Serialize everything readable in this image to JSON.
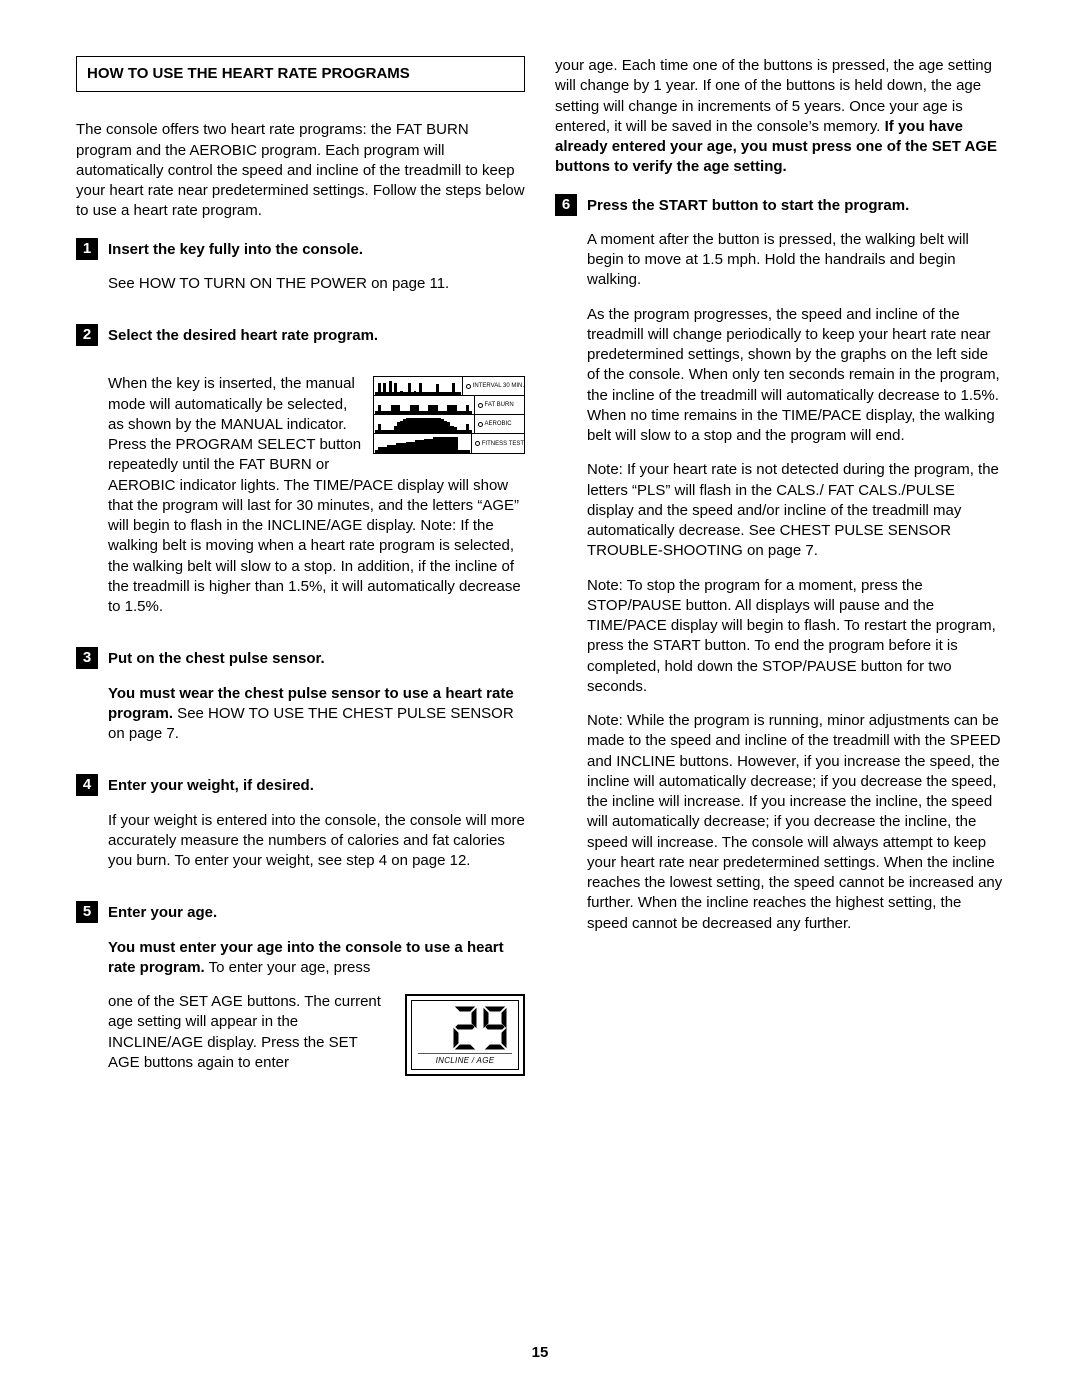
{
  "page_number": "15",
  "section_title": "HOW TO USE THE HEART RATE PROGRAMS",
  "intro": "The console offers two heart rate programs: the FAT BURN program and the AEROBIC program. Each program will automatically control the speed and incline of the treadmill to keep your heart rate near predetermined settings. Follow the steps below to use a heart rate program.",
  "programs_fig": {
    "rows": [
      {
        "label": "INTERVAL 30 MIN.",
        "bars": [
          2,
          8,
          2,
          8,
          2,
          9,
          2,
          8,
          2,
          3,
          2,
          2,
          8,
          2,
          3,
          2,
          8,
          2,
          2,
          2,
          2,
          2,
          7,
          2,
          2,
          2,
          2,
          2,
          8,
          2,
          2
        ]
      },
      {
        "label": "FAT BURN",
        "bars": [
          2,
          6,
          2,
          2,
          2,
          6,
          6,
          6,
          2,
          2,
          2,
          6,
          6,
          6,
          2,
          2,
          2,
          6,
          6,
          6,
          2,
          2,
          2,
          6,
          6,
          6,
          2,
          2,
          2,
          6,
          2
        ]
      },
      {
        "label": "AEROBIC",
        "bars": [
          2,
          6,
          2,
          2,
          2,
          2,
          5,
          7,
          8,
          9,
          10,
          10,
          10,
          10,
          10,
          10,
          10,
          10,
          10,
          10,
          10,
          9,
          8,
          7,
          5,
          4,
          2,
          2,
          2,
          6,
          2
        ]
      },
      {
        "label": "FITNESS TEST",
        "bars": [
          2,
          4,
          4,
          4,
          5,
          5,
          5,
          6,
          6,
          6,
          7,
          7,
          7,
          8,
          8,
          8,
          9,
          9,
          9,
          10,
          10,
          10,
          10,
          10,
          10,
          10,
          10,
          2,
          2,
          2,
          2
        ]
      }
    ],
    "bar_color": "#000000",
    "max": 11
  },
  "age_fig": {
    "value": "29",
    "label": "INCLINE / AGE"
  },
  "steps": [
    {
      "num": "1",
      "head": "Insert the key fully into the console.",
      "paras": [
        {
          "t": "See HOW TO TURN ON THE POWER on page 11."
        }
      ]
    },
    {
      "num": "2",
      "head": "Select the desired heart rate program.",
      "paras": [
        {
          "t": "When the key is inserted, the manual mode will automatically be selected, as shown by the MANUAL indicator. Press the PROGRAM SELECT button repeatedly until the FAT BURN or AEROBIC indicator lights. The TIME/PACE display will show that the program will last for 30 minutes, and the letters “AGE” will begin to flash in the INCLINE/AGE display. Note: If the walking belt is moving when a heart rate program is selected, the walking belt will slow to a stop. In addition, if the incline of the treadmill is higher than 1.5%, it will automatically decrease to 1.5%.",
          "fig": "programs"
        }
      ]
    },
    {
      "num": "3",
      "head": "Put on the chest pulse sensor.",
      "paras": [
        {
          "t_pre_bold": "You must wear the chest pulse sensor to use a heart rate program.",
          "t_post": " See HOW TO USE THE CHEST PULSE SENSOR on page 7."
        }
      ]
    },
    {
      "num": "4",
      "head": "Enter your weight, if desired.",
      "paras": [
        {
          "t": "If your weight is entered into the console, the console will more accurately measure the numbers of calories and fat calories you burn. To enter your weight, see step 4 on page 12."
        }
      ]
    },
    {
      "num": "5",
      "head": "Enter your age.",
      "paras": [
        {
          "t_pre_bold": "You must enter your age into the console to use a heart rate program.",
          "t_post": " To enter your age, press one of the SET AGE buttons. The current age setting will appear in the INCLINE/AGE display. Press the SET AGE buttons again to enter your age. Each time one of the buttons is pressed, the age setting will change by 1 year. If one of the buttons is held down, the age setting will change in increments of 5 years. Once your age is entered, it will be saved in the console’s memory. ",
          "t_tail_bold": "If you have already entered your age, you must press one of the SET AGE buttons to verify the age setting.",
          "fig": "age",
          "fig_after_sentence": 6
        }
      ]
    },
    {
      "num": "6",
      "head": "Press the START button to start the program.",
      "paras": [
        {
          "t": "A moment after the button is pressed, the walking belt will begin to move at 1.5 mph. Hold the handrails and begin walking."
        },
        {
          "t": "As the program progresses, the speed and incline of the treadmill will change periodically to keep your heart rate near predetermined settings, shown by the graphs on the left side of the console. When only ten seconds remain in the program, the incline of the treadmill will automatically decrease to 1.5%. When no time remains in the TIME/PACE display, the walking belt will slow to a stop and the program will end."
        },
        {
          "t": "Note: If your heart rate is not detected during the program, the letters “PLS” will flash in the CALS./ FAT CALS./PULSE display and the speed and/or incline of the treadmill may automatically decrease. See CHEST PULSE SENSOR TROUBLE-SHOOTING on page 7."
        },
        {
          "t": "Note: To stop the program for a moment, press the STOP/PAUSE button. All displays will pause and the TIME/PACE display will begin to flash. To restart the program, press the START button. To end the program before it is completed, hold down the STOP/PAUSE button for two seconds."
        },
        {
          "t": "Note: While the program is running, minor adjustments can be made to the speed and incline of the treadmill with the SPEED and INCLINE buttons. However, if you increase the speed, the incline will automatically decrease; if you decrease the speed, the incline will increase. If you increase the incline, the speed will automatically decrease; if you decrease the incline, the speed will increase. The console will always attempt to keep your heart rate near predetermined settings. When the incline reaches the lowest setting, the speed cannot be increased any further. When the incline reaches the highest setting, the speed cannot be decreased any further."
        }
      ]
    }
  ]
}
